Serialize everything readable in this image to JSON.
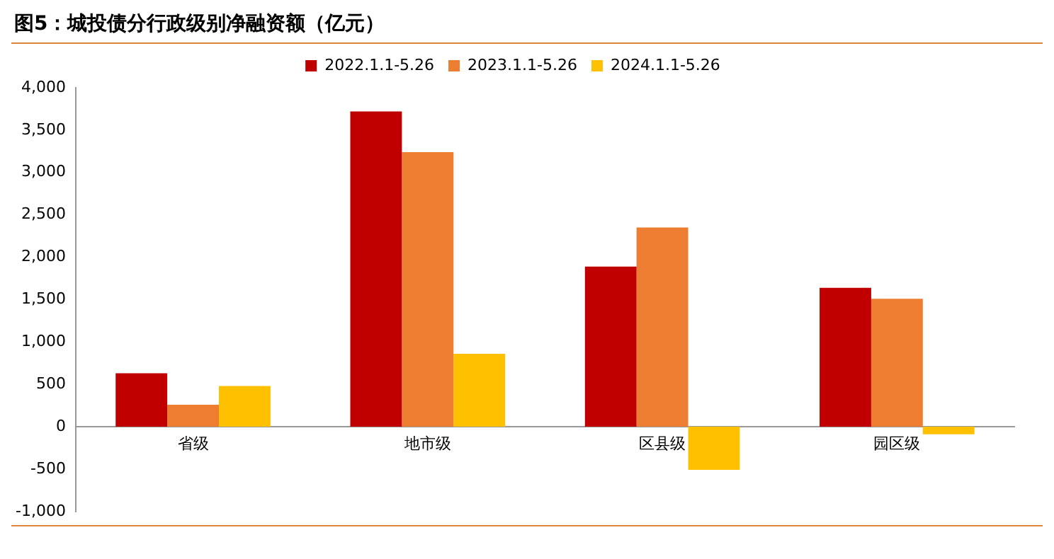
{
  "chart_data": {
    "type": "bar",
    "title": "图5：城投债分行政级别净融资额（亿元）",
    "categories": [
      "省级",
      "地市级",
      "区县级",
      "园区级"
    ],
    "series": [
      {
        "name": "2022.1.1-5.26",
        "color": "#c00000",
        "values": [
          630,
          3720,
          1890,
          1640
        ]
      },
      {
        "name": "2023.1.1-5.26",
        "color": "#ed7d31",
        "values": [
          260,
          3240,
          2350,
          1510
        ]
      },
      {
        "name": "2024.1.1-5.26",
        "color": "#ffc000",
        "values": [
          480,
          860,
          -510,
          -90
        ]
      }
    ],
    "ylim": [
      -1000,
      4000
    ],
    "yticks": [
      {
        "value": -1000,
        "label": "-1,000"
      },
      -500,
      0,
      500,
      {
        "value": 1000,
        "label": "1,000"
      },
      {
        "value": 1500,
        "label": "1,500"
      },
      {
        "value": 2000,
        "label": "2,000"
      },
      {
        "value": 2500,
        "label": "2,500"
      },
      {
        "value": 3000,
        "label": "3,000"
      },
      {
        "value": 3500,
        "label": "3,500"
      },
      {
        "value": 4000,
        "label": "4,000"
      }
    ],
    "grid": false,
    "legend": "top"
  }
}
